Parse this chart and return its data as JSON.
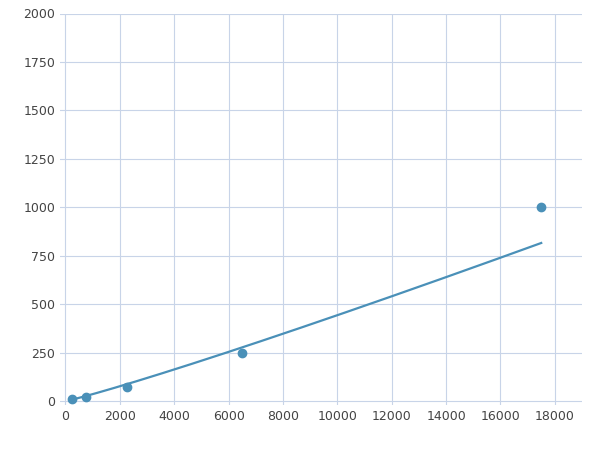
{
  "x": [
    250,
    750,
    2250,
    6500,
    17500
  ],
  "y": [
    10,
    22,
    75,
    250,
    1000
  ],
  "line_color": "#4a90b8",
  "marker_color": "#4a90b8",
  "marker_size": 6,
  "line_width": 1.6,
  "xlim": [
    -200,
    19000
  ],
  "ylim": [
    -20,
    2000
  ],
  "xticks": [
    0,
    2000,
    4000,
    6000,
    8000,
    10000,
    12000,
    14000,
    16000,
    18000
  ],
  "yticks": [
    0,
    250,
    500,
    750,
    1000,
    1250,
    1500,
    1750,
    2000
  ],
  "grid_color": "#c8d4e8",
  "background_color": "#ffffff",
  "figure_bg": "#ffffff",
  "tick_labelsize": 9,
  "tick_color": "#444444"
}
